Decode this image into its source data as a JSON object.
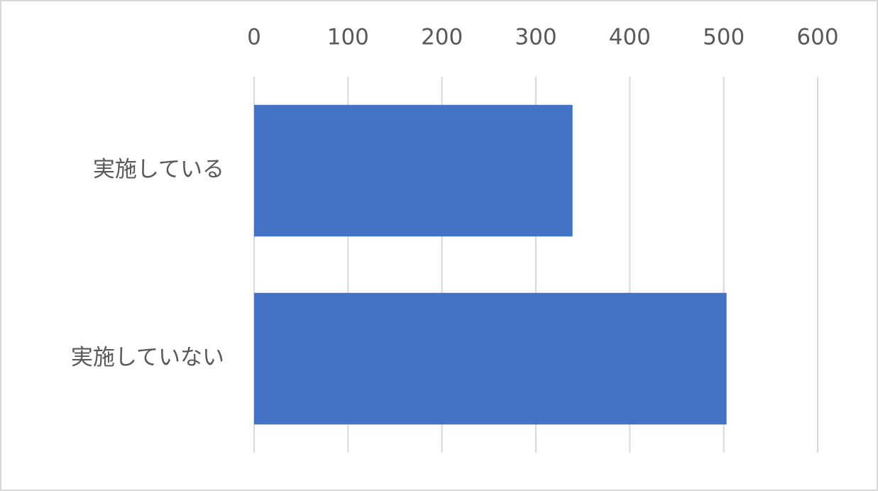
{
  "chart_data": {
    "type": "barh",
    "categories": [
      "実施している",
      "実施していない"
    ],
    "values": [
      339,
      503
    ],
    "color": "#4472c4",
    "xlim": [
      0,
      600
    ],
    "xticks": [
      0,
      100,
      200,
      300,
      400,
      500,
      600
    ],
    "grid": true
  }
}
